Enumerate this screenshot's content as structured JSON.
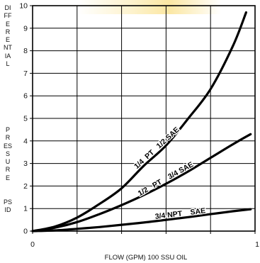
{
  "chart_data": {
    "type": "line",
    "title": "",
    "xlabel": "FLOW (GPM) 100 SSU OIL",
    "ylabel": "DIFFERENTIAL PRESSURE PSID",
    "ylabel_words": [
      "DIFFERENTIAL",
      "PRESSURE",
      "PSID"
    ],
    "xlim": [
      0,
      1
    ],
    "ylim": [
      0,
      10
    ],
    "x_ticks": [
      "0",
      "1"
    ],
    "y_ticks": [
      "0",
      "1",
      "2",
      "3",
      "4",
      "5",
      "6",
      "7",
      "8",
      "9",
      "10"
    ],
    "grid": true,
    "series": [
      {
        "name": "1/4  PT   1/2 SAE",
        "x": [
          0,
          0.1,
          0.2,
          0.3,
          0.4,
          0.5,
          0.6,
          0.7,
          0.8,
          0.9,
          0.96
        ],
        "values": [
          0,
          0.2,
          0.6,
          1.2,
          1.9,
          2.9,
          3.8,
          5.0,
          6.3,
          8.2,
          9.7
        ]
      },
      {
        "name": "1/2   PT    3/4 SAE",
        "x": [
          0,
          0.1,
          0.2,
          0.3,
          0.4,
          0.5,
          0.6,
          0.7,
          0.8,
          0.9,
          0.98
        ],
        "values": [
          0,
          0.15,
          0.4,
          0.75,
          1.15,
          1.6,
          2.1,
          2.65,
          3.25,
          3.85,
          4.3
        ]
      },
      {
        "name": "3/4 NPT    SAE",
        "x": [
          0,
          0.1,
          0.2,
          0.3,
          0.4,
          0.5,
          0.6,
          0.7,
          0.8,
          0.9,
          0.98
        ],
        "values": [
          0,
          0.03,
          0.1,
          0.18,
          0.28,
          0.38,
          0.5,
          0.62,
          0.75,
          0.88,
          0.97
        ]
      }
    ]
  }
}
